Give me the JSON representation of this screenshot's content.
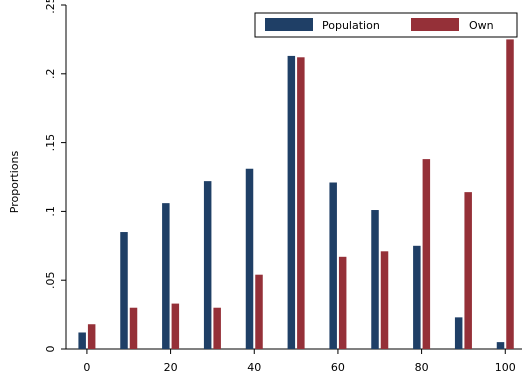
{
  "chart_data": {
    "type": "bar",
    "categories": [
      0,
      10,
      20,
      30,
      40,
      50,
      60,
      70,
      80,
      90,
      100
    ],
    "series": [
      {
        "name": "Population",
        "color": "#1F3F66",
        "values": [
          0.012,
          0.085,
          0.106,
          0.122,
          0.131,
          0.213,
          0.121,
          0.101,
          0.075,
          0.023,
          0.005
        ]
      },
      {
        "name": "Own",
        "color": "#953038",
        "values": [
          0.018,
          0.03,
          0.033,
          0.03,
          0.054,
          0.212,
          0.067,
          0.071,
          0.138,
          0.114,
          0.225
        ]
      }
    ],
    "xlabel": "",
    "ylabel": "Proportions",
    "ylim": [
      0,
      0.25
    ],
    "yticks": [
      0,
      0.05,
      0.1,
      0.15,
      0.2,
      0.25
    ],
    "ytick_labels": [
      "0",
      ".05",
      ".1",
      ".15",
      ".2",
      ".25"
    ],
    "xticks": [
      0,
      20,
      40,
      60,
      80,
      100
    ],
    "xtick_labels": [
      "0",
      "20",
      "40",
      "60",
      "80",
      "100"
    ],
    "xlim": [
      -5,
      104
    ],
    "grid": false,
    "legend_position": "top-right"
  }
}
